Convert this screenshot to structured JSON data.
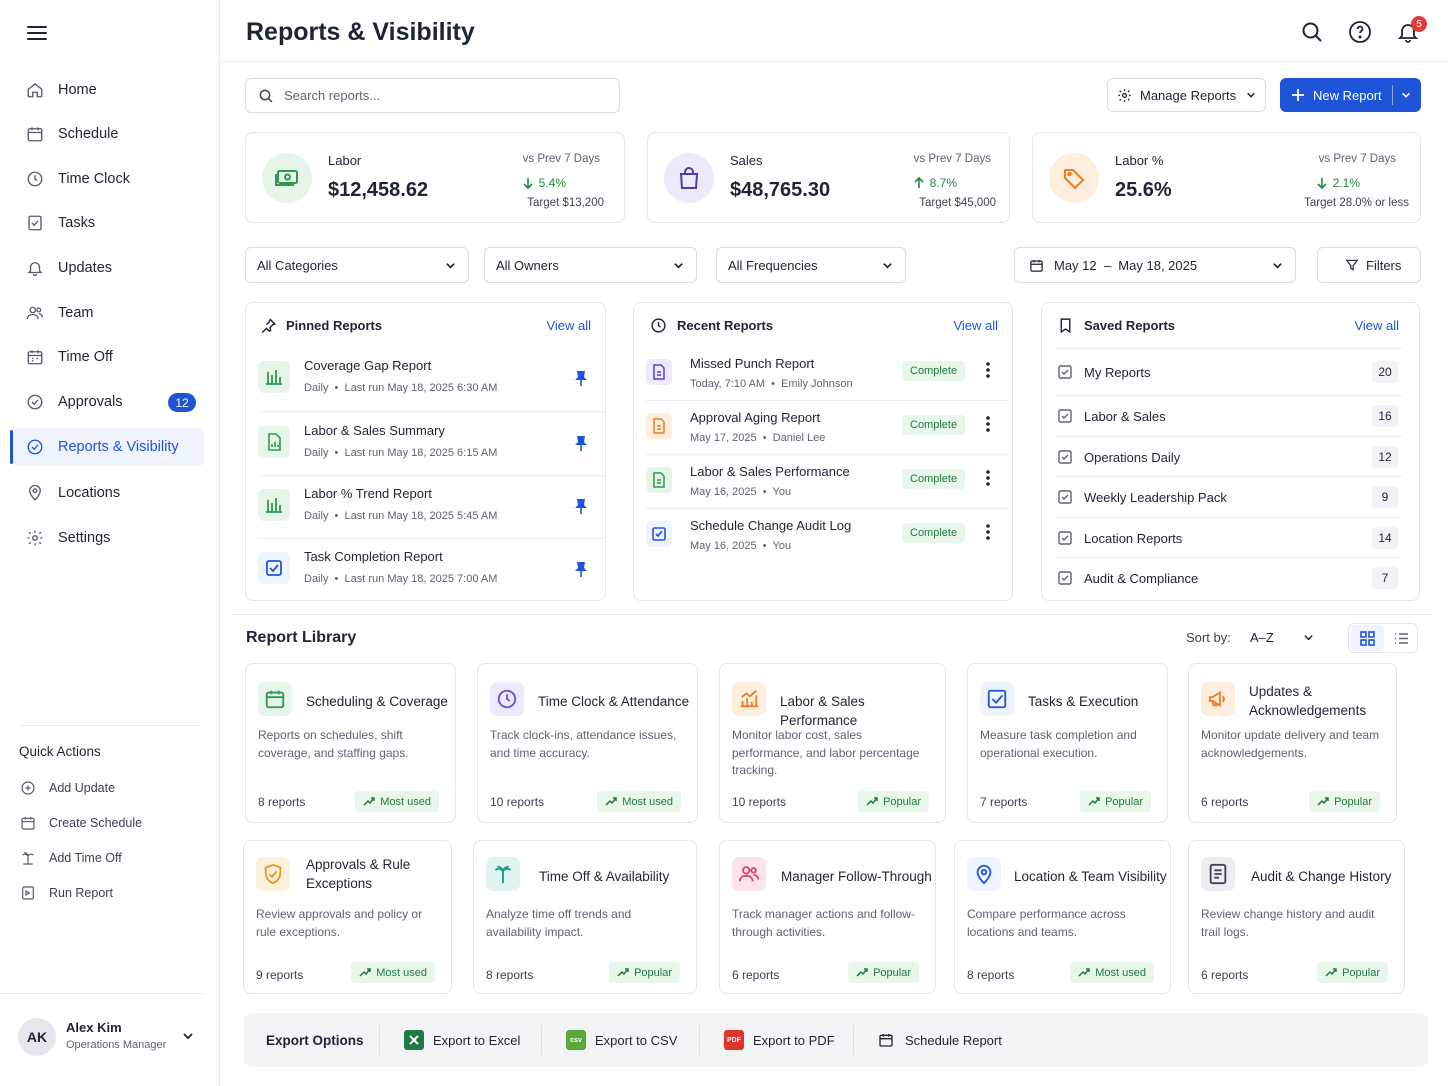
{
  "header": {
    "title": "Reports & Visibility",
    "notif_count": "5"
  },
  "sidebar": {
    "items": [
      {
        "label": "Home"
      },
      {
        "label": "Schedule"
      },
      {
        "label": "Time Clock"
      },
      {
        "label": "Tasks"
      },
      {
        "label": "Updates"
      },
      {
        "label": "Team"
      },
      {
        "label": "Time Off"
      },
      {
        "label": "Approvals",
        "badge": "12"
      },
      {
        "label": "Reports & Visibility",
        "active": true
      },
      {
        "label": "Locations"
      },
      {
        "label": "Settings"
      }
    ],
    "quick_actions_title": "Quick Actions",
    "quick_actions": [
      "Add Update",
      "Create Schedule",
      "Add Time Off",
      "Run Report"
    ],
    "user": {
      "initials": "AK",
      "name": "Alex Kim",
      "role": "Operations Manager"
    }
  },
  "toolbar": {
    "search_placeholder": "Search reports...",
    "manage_label": "Manage Reports",
    "new_label": "New Report"
  },
  "kpis": [
    {
      "title": "Labor",
      "value": "$12,458.62",
      "vs": "vs Prev 7 Days",
      "delta": "5.4%",
      "delta_dir": "down",
      "target": "Target $13,200"
    },
    {
      "title": "Sales",
      "value": "$48,765.30",
      "vs": "vs Prev 7 Days",
      "delta": "8.7%",
      "delta_dir": "up",
      "target": "Target $45,000"
    },
    {
      "title": "Labor %",
      "value": "25.6%",
      "vs": "vs Prev 7 Days",
      "delta": "2.1%",
      "delta_dir": "down",
      "target": "Target 28.0% or less"
    }
  ],
  "filters": {
    "categories": "All Categories",
    "owners": "All Owners",
    "frequencies": "All Frequencies",
    "date_range": "May 12  –  May 18, 2025",
    "filters_label": "Filters"
  },
  "pinned": {
    "title": "Pinned Reports",
    "view_all": "View all",
    "rows": [
      {
        "title": "Coverage Gap Report",
        "sub": "Daily  •  Last run May 18, 2025 6:30 AM"
      },
      {
        "title": "Labor & Sales Summary",
        "sub": "Daily  •  Last run May 18, 2025 6:15 AM"
      },
      {
        "title": "Labor % Trend Report",
        "sub": "Daily  •  Last run May 18, 2025 5:45 AM"
      },
      {
        "title": "Task Completion Report",
        "sub": "Daily  •  Last run May 18, 2025 7:00 AM"
      }
    ]
  },
  "recent": {
    "title": "Recent Reports",
    "view_all": "View all",
    "rows": [
      {
        "title": "Missed Punch Report",
        "sub": "Today, 7:10 AM  •  Emily Johnson",
        "status": "Complete"
      },
      {
        "title": "Approval Aging Report",
        "sub": "May 17, 2025  •  Daniel Lee",
        "status": "Complete"
      },
      {
        "title": "Labor & Sales Performance",
        "sub": "May 16, 2025  •  You",
        "status": "Complete"
      },
      {
        "title": "Schedule Change Audit Log",
        "sub": "May 16, 2025  •  You",
        "status": "Complete"
      }
    ]
  },
  "saved": {
    "title": "Saved Reports",
    "view_all": "View all",
    "rows": [
      {
        "label": "My Reports",
        "count": "20"
      },
      {
        "label": "Labor & Sales",
        "count": "16"
      },
      {
        "label": "Operations Daily",
        "count": "12"
      },
      {
        "label": "Weekly Leadership Pack",
        "count": "9"
      },
      {
        "label": "Location Reports",
        "count": "14"
      },
      {
        "label": "Audit & Compliance",
        "count": "7"
      }
    ]
  },
  "library": {
    "title": "Report Library",
    "sort_label": "Sort by:",
    "sort_value": "A–Z",
    "cards": [
      {
        "title": "Scheduling & Coverage",
        "desc": "Reports on schedules, shift coverage, and staffing gaps.",
        "count": "8 reports",
        "tag": "Most used",
        "icon": "calendar-icon",
        "color": "#2e9b4f"
      },
      {
        "title": "Time Clock & Attendance",
        "desc": "Track clock-ins, attendance issues, and time accuracy.",
        "count": "10 reports",
        "tag": "Most used",
        "icon": "clock-icon",
        "color": "#6b4fd6"
      },
      {
        "title": "Labor & Sales Performance",
        "desc": "Monitor labor cost, sales performance, and labor percentage tracking.",
        "count": "10 reports",
        "tag": "Popular",
        "icon": "bar-chart-icon",
        "color": "#ef7d22"
      },
      {
        "title": "Tasks & Execution",
        "desc": "Measure task completion and operational execution.",
        "count": "7 reports",
        "tag": "Popular",
        "icon": "checkbox-icon",
        "color": "#1e55d8"
      },
      {
        "title": "Updates & Acknowledgements",
        "desc": "Monitor update delivery and team acknowledgements.",
        "count": "6 reports",
        "tag": "Popular",
        "icon": "megaphone-icon",
        "color": "#ef7d22"
      },
      {
        "title": "Approvals & Rule Exceptions",
        "desc": "Review approvals and policy or rule exceptions.",
        "count": "9 reports",
        "tag": "Most used",
        "icon": "shield-check-icon",
        "color": "#e89a1c"
      },
      {
        "title": "Time Off & Availability",
        "desc": "Analyze time off trends and availability impact.",
        "count": "8 reports",
        "tag": "Popular",
        "icon": "palm-tree-icon",
        "color": "#1a9a8a"
      },
      {
        "title": "Manager Follow-Through",
        "desc": "Track manager actions and follow-through activities.",
        "count": "6 reports",
        "tag": "Popular",
        "icon": "people-icon",
        "color": "#e0426b"
      },
      {
        "title": "Location & Team Visibility",
        "desc": "Compare performance across locations and teams.",
        "count": "8 reports",
        "tag": "Most used",
        "icon": "location-pin-icon",
        "color": "#1e55d8"
      },
      {
        "title": "Audit & Change History",
        "desc": "Review change history and audit trail logs.",
        "count": "6 reports",
        "tag": "Popular",
        "icon": "document-icon",
        "color": "#3b4352"
      }
    ]
  },
  "export": {
    "title": "Export Options",
    "excel": "Export to Excel",
    "csv": "Export to CSV",
    "csv_badge": "csv",
    "pdf": "Export to PDF",
    "pdf_badge": "PDF",
    "schedule": "Schedule Report"
  },
  "colors": {
    "accent": "#1e55d8",
    "success": "#1e8a3c",
    "danger": "#e53935"
  }
}
